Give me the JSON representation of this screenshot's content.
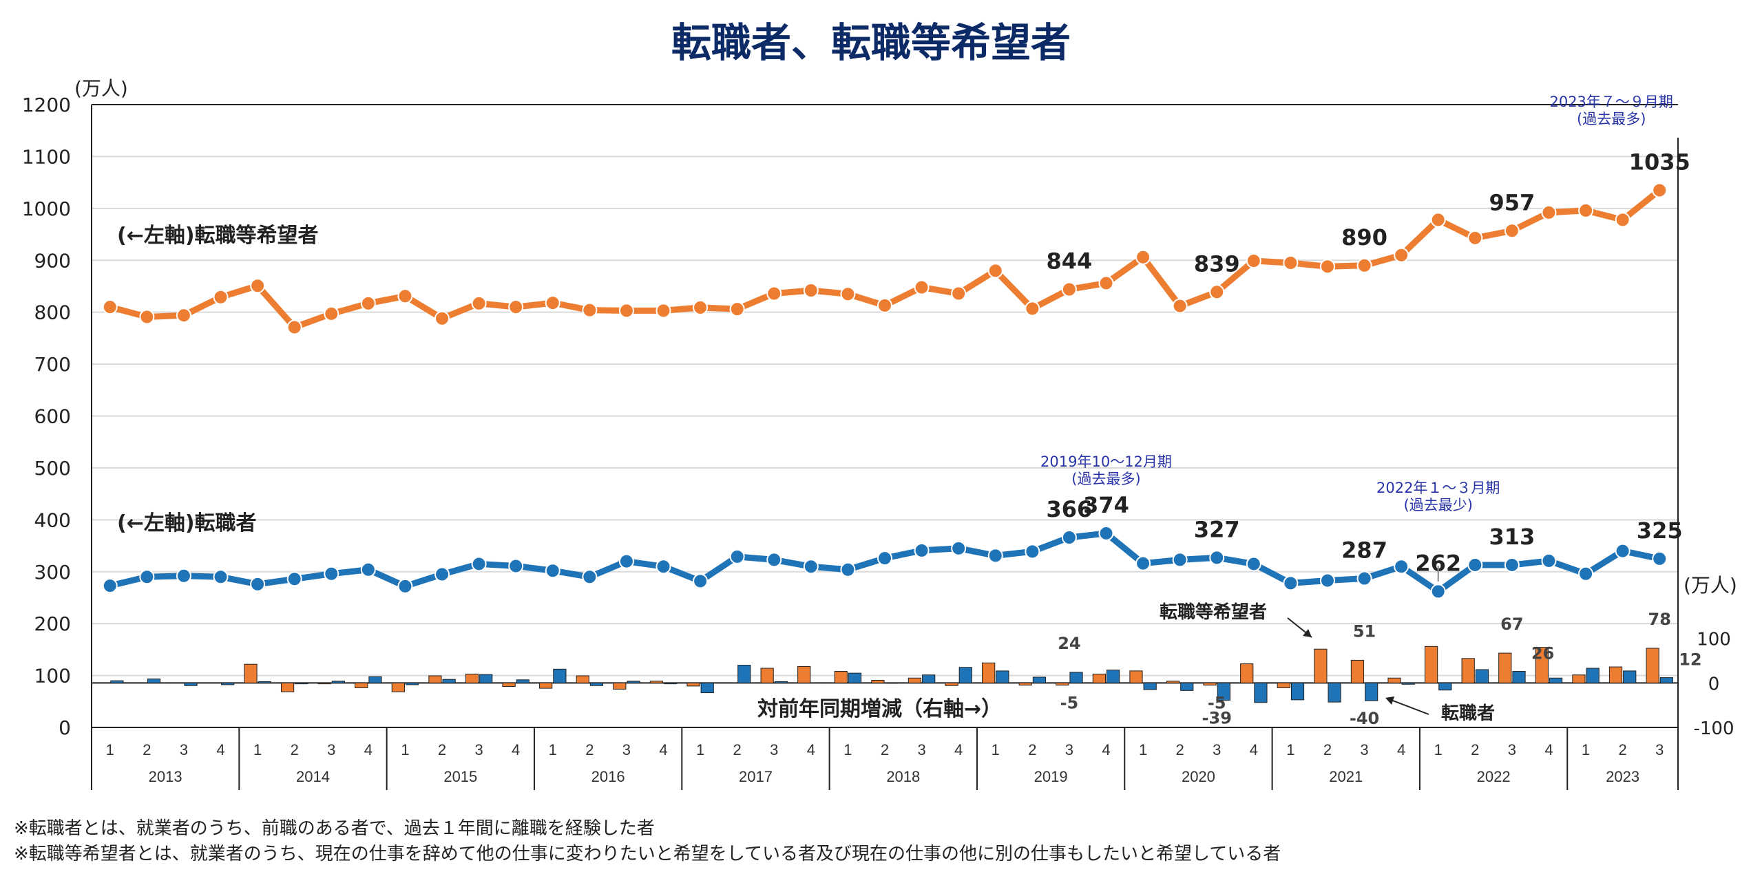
{
  "title": "転職者、転職等希望者",
  "chart_data": {
    "type": "line",
    "left_unit": "(万人)",
    "right_unit": "(万人)",
    "left_ylim": [
      0,
      1200
    ],
    "left_ticks": [
      "0",
      "100",
      "200",
      "300",
      "400",
      "500",
      "600",
      "700",
      "800",
      "900",
      "1000",
      "1100",
      "1200"
    ],
    "right_ylim": [
      -100,
      1300
    ],
    "right_ticks": [
      {
        "value": -100,
        "label": "-100"
      },
      {
        "value": 0,
        "label": "0"
      },
      {
        "value": 100,
        "label": "100"
      }
    ],
    "quarters": [
      "1",
      "2",
      "3",
      "4"
    ],
    "years": [
      "2013",
      "2014",
      "2015",
      "2016",
      "2017",
      "2018",
      "2019",
      "2020",
      "2021",
      "2022",
      "2023"
    ],
    "series": [
      {
        "name": "(←左軸)転職等希望者",
        "axis": "left",
        "color": "#ed7d31",
        "values": [
          810,
          791,
          794,
          829,
          851,
          771,
          797,
          817,
          831,
          788,
          817,
          810,
          818,
          804,
          803,
          803,
          809,
          806,
          836,
          842,
          835,
          813,
          848,
          836,
          880,
          807,
          844,
          856,
          906,
          812,
          839,
          899,
          895,
          888,
          890,
          910,
          978,
          943,
          957,
          992,
          996,
          978,
          1035
        ]
      },
      {
        "name": "(←左軸)転職者",
        "axis": "left",
        "color": "#1f73b7",
        "values": [
          273,
          290,
          292,
          290,
          276,
          286,
          296,
          304,
          272,
          295,
          315,
          311,
          302,
          290,
          320,
          310,
          282,
          329,
          323,
          310,
          304,
          326,
          341,
          345,
          331,
          339,
          366,
          374,
          316,
          323,
          327,
          315,
          278,
          283,
          287,
          310,
          262,
          313,
          313,
          321,
          296,
          340,
          325
        ]
      }
    ],
    "bar_series": [
      {
        "name": "転職等希望者",
        "axis": "right",
        "color": "#ed7d31",
        "values": [
          0,
          0,
          0,
          0,
          42,
          -20,
          -2,
          -11,
          -20,
          16,
          20,
          -8,
          -12,
          16,
          -14,
          4,
          -7,
          0,
          33,
          37,
          26,
          6,
          11,
          -6,
          45,
          -5,
          -5,
          20,
          27,
          4,
          -5,
          43,
          -11,
          76,
          51,
          11,
          82,
          55,
          67,
          80,
          18,
          36,
          78
        ]
      },
      {
        "name": "転職者",
        "axis": "right",
        "color": "#1f73b7",
        "values": [
          5,
          9,
          -6,
          -4,
          3,
          -2,
          4,
          14,
          -4,
          8,
          19,
          7,
          31,
          -6,
          4,
          -2,
          -22,
          40,
          3,
          0,
          22,
          -1,
          18,
          35,
          27,
          13,
          24,
          29,
          -15,
          -17,
          -39,
          -44,
          -38,
          -43,
          -40,
          -3,
          -16,
          30,
          26,
          11,
          33,
          27,
          12
        ]
      }
    ],
    "point_labels": [
      {
        "series": 0,
        "index": 26,
        "text": "844"
      },
      {
        "series": 0,
        "index": 30,
        "text": "839"
      },
      {
        "series": 0,
        "index": 34,
        "text": "890"
      },
      {
        "series": 0,
        "index": 38,
        "text": "957"
      },
      {
        "series": 0,
        "index": 42,
        "text": "1035"
      },
      {
        "series": 1,
        "index": 26,
        "text": "366"
      },
      {
        "series": 1,
        "index": 27,
        "text": "374"
      },
      {
        "series": 1,
        "index": 30,
        "text": "327"
      },
      {
        "series": 1,
        "index": 34,
        "text": "287"
      },
      {
        "series": 1,
        "index": 36,
        "text": "262"
      },
      {
        "series": 1,
        "index": 38,
        "text": "313"
      },
      {
        "series": 1,
        "index": 42,
        "text": "325"
      }
    ],
    "bar_labels": [
      {
        "index": 26,
        "text": "24",
        "value": 24,
        "where": "above"
      },
      {
        "index": 26,
        "text": "-5",
        "value": -5,
        "where": "below"
      },
      {
        "index": 30,
        "text": "-5",
        "value": -5,
        "where": "below"
      },
      {
        "index": 30,
        "text": "-39",
        "value": -39,
        "where": "below"
      },
      {
        "index": 34,
        "text": "51",
        "value": 51,
        "where": "above"
      },
      {
        "index": 34,
        "text": "-40",
        "value": -40,
        "where": "below"
      },
      {
        "index": 38,
        "text": "67",
        "value": 67,
        "where": "above"
      },
      {
        "index": 38,
        "text": "26",
        "value": 26,
        "where": "right"
      },
      {
        "index": 42,
        "text": "78",
        "value": 78,
        "where": "above"
      },
      {
        "index": 42,
        "text": "12",
        "value": 12,
        "where": "right"
      }
    ],
    "annotations": [
      {
        "text": "2023年７～９月期",
        "text2": "(過去最多)",
        "index": 42
      },
      {
        "text": "2019年10～12月期",
        "text2": "(過去最多)",
        "index": 27
      },
      {
        "text": "2022年１～３月期",
        "text2": "(過去最少)",
        "index": 36
      }
    ],
    "bar_series_label": "転職等希望者",
    "bar_series_label2": "転職者",
    "bar_axis_label": "対前年同期増減（右軸→）",
    "grid": true
  },
  "footnotes": [
    "※転職者とは、就業者のうち、前職のある者で、過去１年間に離職を経験した者",
    "※転職等希望者とは、就業者のうち、現在の仕事を辞めて他の仕事に変わりたいと希望をしている者及び現在の仕事の他に別の仕事もしたいと希望している者"
  ]
}
